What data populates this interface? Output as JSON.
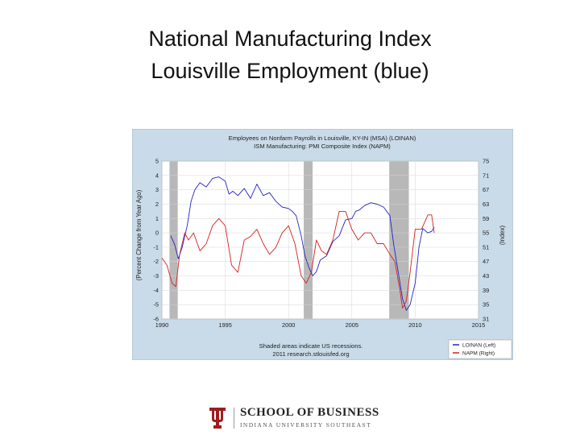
{
  "slide": {
    "title_line1": "National Manufacturing Index",
    "title_line2": "Louisville Employment (blue)"
  },
  "logo": {
    "school": "SCHOOL OF BUSINESS",
    "university": "INDIANA UNIVERSITY SOUTHEAST",
    "brand_color": "#9d1c20"
  },
  "chart_data": {
    "type": "line",
    "title_lines": [
      "Employees on Nonfarm Payrolls in Louisville, KY-IN (MSA) (LOINAN)",
      "ISM Manufacturing: PMI Composite Index (NAPM)"
    ],
    "ylabel_left": "(Percent Change from Year Ago)",
    "ylabel_right": "(Index)",
    "x_ticks": [
      "1990",
      "1995",
      "2000",
      "2005",
      "2010",
      "2015"
    ],
    "xlim": [
      1990,
      2015
    ],
    "y_left_ticks": [
      "5",
      "4",
      "3",
      "2",
      "1",
      "0",
      "-1",
      "-2",
      "-3",
      "-4",
      "-5",
      "-6"
    ],
    "ylim_left": [
      -6,
      5
    ],
    "y_right_ticks": [
      "75",
      "71",
      "67",
      "63",
      "59",
      "55",
      "51",
      "47",
      "43",
      "39",
      "35",
      "31"
    ],
    "ylim_right": [
      31,
      75
    ],
    "grid": true,
    "recessions": [
      [
        1990.6,
        1991.25
      ],
      [
        2001.2,
        2001.9
      ],
      [
        2007.95,
        2009.5
      ]
    ],
    "footer_lines": [
      "Shaded areas indicate US recessions.",
      "2011 research.stlouisfed.org"
    ],
    "colors": {
      "background": "#c9dbe8",
      "plot": "#ffffff",
      "loinan": "#2323c8",
      "napm": "#d42020",
      "recession": "#b8b8b8"
    },
    "series": [
      {
        "name": "LOINAN (Left)",
        "axis": "left",
        "x": [
          1990.7,
          1991.0,
          1991.3,
          1991.6,
          1992.0,
          1992.3,
          1992.6,
          1993.0,
          1993.5,
          1994.0,
          1994.5,
          1995.0,
          1995.3,
          1995.6,
          1996.0,
          1996.5,
          1997.0,
          1997.5,
          1998.0,
          1998.5,
          1999.0,
          1999.5,
          2000.0,
          2000.3,
          2000.6,
          2001.0,
          2001.3,
          2001.6,
          2001.9,
          2002.2,
          2002.5,
          2003.0,
          2003.5,
          2004.0,
          2004.5,
          2005.0,
          2005.3,
          2005.6,
          2006.0,
          2006.5,
          2007.0,
          2007.5,
          2008.0,
          2008.3,
          2008.6,
          2009.0,
          2009.3,
          2009.6,
          2010.0,
          2010.3,
          2010.6,
          2011.0,
          2011.3,
          2011.5
        ],
        "y": [
          -0.2,
          -0.8,
          -1.8,
          -1.0,
          0.5,
          2.2,
          3.0,
          3.5,
          3.2,
          3.8,
          3.9,
          3.6,
          2.7,
          2.9,
          2.6,
          3.1,
          2.4,
          3.4,
          2.6,
          2.8,
          2.2,
          1.8,
          1.7,
          1.5,
          1.2,
          -0.2,
          -1.6,
          -2.4,
          -3.0,
          -2.7,
          -1.9,
          -1.6,
          -0.6,
          -0.2,
          0.9,
          1.0,
          1.5,
          1.6,
          1.9,
          2.1,
          2.0,
          1.8,
          1.2,
          -0.8,
          -2.4,
          -4.6,
          -5.4,
          -5.0,
          -3.5,
          -1.0,
          0.3,
          0.0,
          0.1,
          0.4
        ]
      },
      {
        "name": "NAPM (Right)",
        "axis": "right",
        "x": [
          1990.0,
          1990.4,
          1990.8,
          1991.1,
          1991.4,
          1991.8,
          1992.1,
          1992.5,
          1993.0,
          1993.5,
          1994.0,
          1994.5,
          1995.0,
          1995.5,
          1996.0,
          1996.5,
          1997.0,
          1997.5,
          1998.0,
          1998.5,
          1999.0,
          1999.5,
          2000.0,
          2000.5,
          2001.0,
          2001.4,
          2001.8,
          2002.2,
          2002.6,
          2003.0,
          2003.5,
          2004.0,
          2004.5,
          2005.0,
          2005.5,
          2006.0,
          2006.5,
          2007.0,
          2007.5,
          2008.0,
          2008.4,
          2008.8,
          2009.0,
          2009.3,
          2009.6,
          2010.0,
          2010.5,
          2011.0,
          2011.3,
          2011.5
        ],
        "y": [
          48,
          46,
          41,
          40,
          49,
          55,
          53,
          55,
          50,
          52,
          57,
          59,
          57,
          46,
          44,
          53,
          54,
          56,
          52,
          49,
          51,
          55,
          57,
          52,
          43,
          41,
          44,
          53,
          50,
          49,
          53,
          61,
          61,
          56,
          53,
          55,
          55,
          52,
          52,
          49,
          47,
          39,
          34,
          36,
          44,
          56,
          56,
          60,
          60,
          55
        ]
      }
    ]
  }
}
